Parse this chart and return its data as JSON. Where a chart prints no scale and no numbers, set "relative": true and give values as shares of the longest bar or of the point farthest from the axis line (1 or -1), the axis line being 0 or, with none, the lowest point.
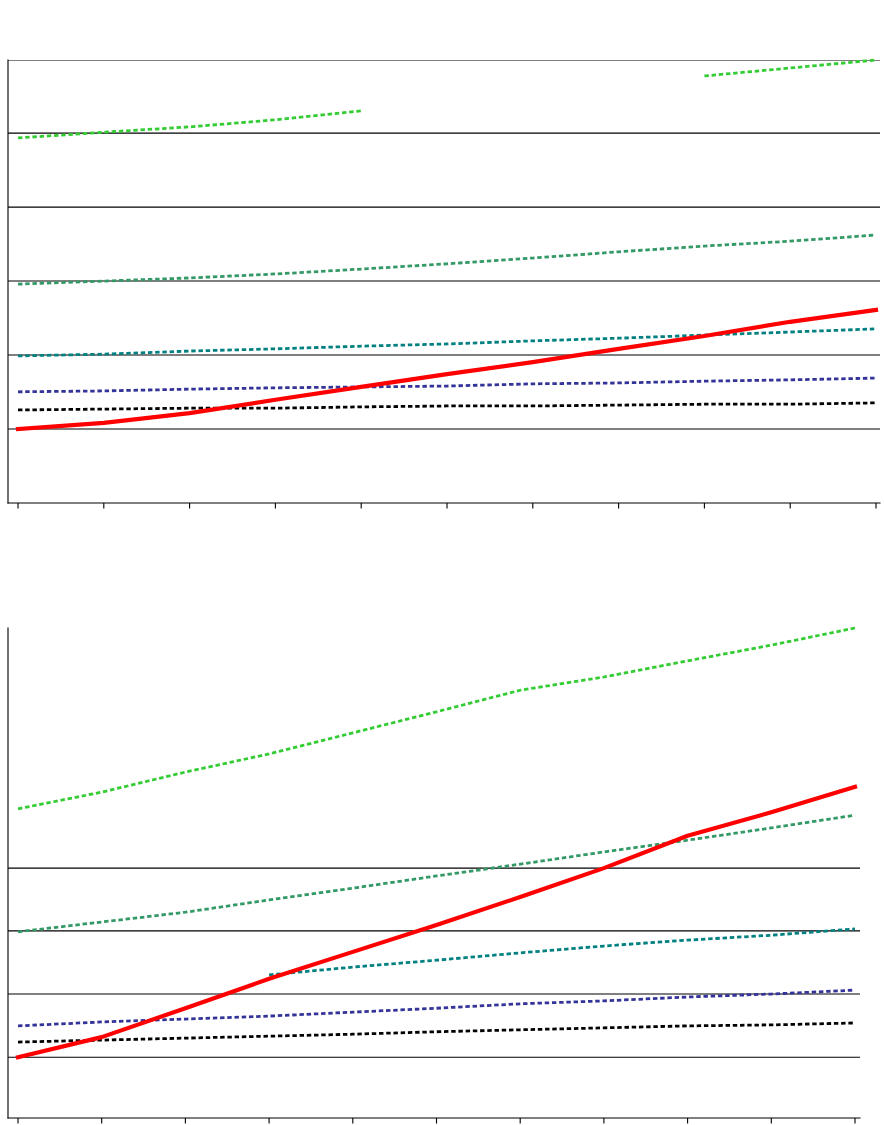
{
  "chart_data": [
    {
      "type": "line",
      "relative": true,
      "line_style": "dashed",
      "categories": [
        null,
        null,
        null,
        null,
        null,
        null,
        null,
        null,
        null,
        null,
        null
      ],
      "ref_lines": [
        {
          "axis": "y",
          "value": 0.167,
          "color": "#000000"
        },
        {
          "axis": "y",
          "value": 0.334,
          "color": "#000000"
        },
        {
          "axis": "y",
          "value": 0.501,
          "color": "#000000"
        },
        {
          "axis": "y",
          "value": 0.668,
          "color": "#000000"
        },
        {
          "axis": "y",
          "value": 0.835,
          "color": "#000000"
        },
        {
          "axis": "y",
          "value": 1.0,
          "color": "#000000"
        }
      ],
      "series": [
        {
          "color": "#33cc33",
          "values": [
            0.824,
            0.837,
            0.849,
            0.865,
            0.885,
            null,
            null,
            null,
            0.964,
            0.982,
            1.0
          ]
        },
        {
          "color": "#339966",
          "values": [
            0.494,
            0.501,
            0.508,
            0.517,
            0.528,
            0.54,
            0.553,
            0.567,
            0.58,
            0.591,
            0.605
          ]
        },
        {
          "color": "#008080",
          "values": [
            0.332,
            0.336,
            0.343,
            0.348,
            0.354,
            0.359,
            0.366,
            0.372,
            0.379,
            0.386,
            0.393
          ]
        },
        {
          "color": "#333399",
          "values": [
            0.251,
            0.253,
            0.257,
            0.26,
            0.262,
            0.264,
            0.269,
            0.271,
            0.275,
            0.278,
            0.282
          ]
        },
        {
          "color": "#000000",
          "values": [
            0.21,
            0.212,
            0.214,
            0.214,
            0.217,
            0.219,
            0.219,
            0.221,
            0.223,
            0.223,
            0.226
          ]
        },
        {
          "color": "#ff0000",
          "line_style": "solid",
          "values": [
            0.167,
            0.181,
            0.203,
            0.233,
            0.262,
            0.291,
            0.318,
            0.348,
            0.377,
            0.409,
            0.436
          ]
        }
      ]
    },
    {
      "type": "line",
      "relative": true,
      "line_style": "dashed",
      "categories": [
        null,
        null,
        null,
        null,
        null,
        null,
        null,
        null,
        null,
        null,
        null
      ],
      "ref_lines": [
        {
          "axis": "y",
          "value": 0.124,
          "color": "#000000"
        },
        {
          "axis": "y",
          "value": 0.253,
          "color": "#000000"
        },
        {
          "axis": "y",
          "value": 0.382,
          "color": "#000000"
        },
        {
          "axis": "y",
          "value": 0.51,
          "color": "#000000"
        }
      ],
      "series": [
        {
          "color": "#33cc33",
          "values": [
            0.631,
            0.665,
            0.706,
            0.743,
            0.786,
            0.829,
            0.873,
            0.9,
            0.933,
            0.965,
            1.0
          ]
        },
        {
          "color": "#339966",
          "values": [
            0.38,
            0.4,
            0.42,
            0.445,
            0.469,
            0.494,
            0.518,
            0.543,
            0.567,
            0.592,
            0.618
          ]
        },
        {
          "color": "#008080",
          "values": [
            null,
            null,
            null,
            0.292,
            0.308,
            0.322,
            0.337,
            0.351,
            0.363,
            0.373,
            0.386
          ]
        },
        {
          "color": "#333399",
          "values": [
            0.188,
            0.196,
            0.202,
            0.208,
            0.216,
            0.224,
            0.233,
            0.239,
            0.247,
            0.253,
            0.261
          ]
        },
        {
          "color": "#000000",
          "values": [
            0.155,
            0.159,
            0.163,
            0.167,
            0.171,
            0.176,
            0.18,
            0.184,
            0.188,
            0.19,
            0.194
          ]
        },
        {
          "color": "#ff0000",
          "line_style": "solid",
          "values": [
            0.124,
            0.165,
            0.224,
            0.284,
            0.339,
            0.394,
            0.451,
            0.51,
            0.576,
            0.624,
            0.676
          ]
        }
      ]
    }
  ]
}
